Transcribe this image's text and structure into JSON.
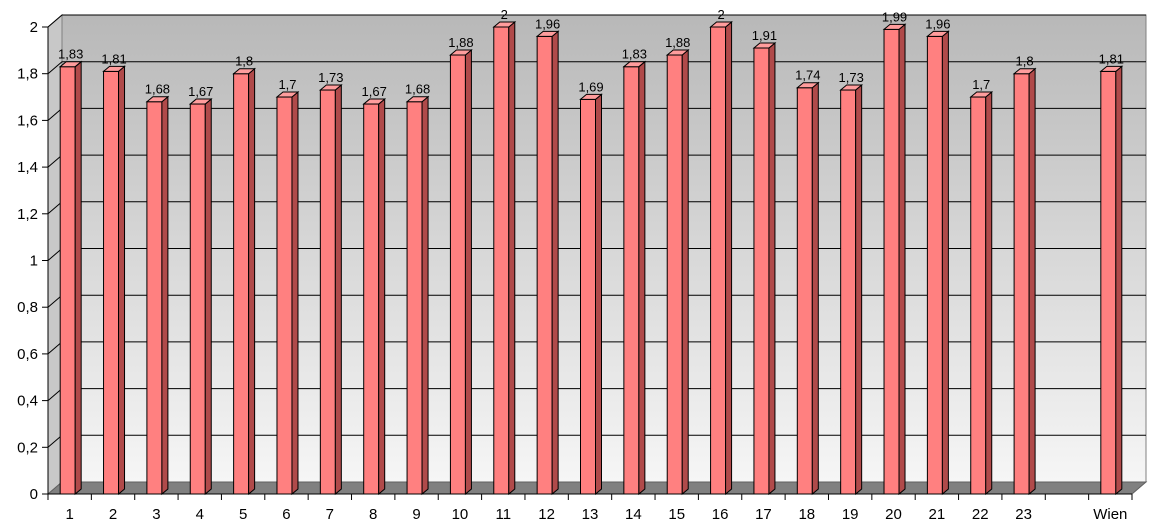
{
  "chart_data": {
    "type": "bar",
    "categories": [
      "1",
      "2",
      "3",
      "4",
      "5",
      "6",
      "7",
      "8",
      "9",
      "10",
      "11",
      "12",
      "13",
      "14",
      "15",
      "16",
      "17",
      "18",
      "19",
      "20",
      "21",
      "22",
      "23",
      "",
      "Wien"
    ],
    "values": [
      1.83,
      1.81,
      1.68,
      1.67,
      1.8,
      1.7,
      1.73,
      1.67,
      1.68,
      1.88,
      2,
      1.96,
      1.69,
      1.83,
      1.88,
      2,
      1.91,
      1.74,
      1.73,
      1.99,
      1.96,
      1.7,
      1.8,
      null,
      1.81
    ],
    "data_labels": [
      "1,83",
      "1,81",
      "1,68",
      "1,67",
      "1,8",
      "1,7",
      "1,73",
      "1,67",
      "1,68",
      "1,88",
      "2",
      "1,96",
      "1,69",
      "1,83",
      "1,88",
      "2",
      "1,91",
      "1,74",
      "1,73",
      "1,99",
      "1,96",
      "1,7",
      "1,8",
      "",
      "1,81"
    ],
    "y_ticks": [
      0,
      0.2,
      0.4,
      0.6,
      0.8,
      1,
      1.2,
      1.4,
      1.6,
      1.8,
      2
    ],
    "y_tick_labels": [
      "0",
      "0,2",
      "0,4",
      "0,6",
      "0,8",
      "1",
      "1,2",
      "1,4",
      "1,6",
      "1,8",
      "2"
    ],
    "ylim": [
      0,
      2
    ],
    "grid": true,
    "legend": "none",
    "style": "3d-column",
    "colors": {
      "bar_front": "#ff8080",
      "bar_side": "#b04a4a",
      "bar_top": "#ff9d9d",
      "bar_outline": "#000000",
      "wall_top": "#b8b8b8",
      "wall_bottom": "#f6f6f6",
      "floor": "#808080",
      "gridline": "#000000"
    }
  }
}
